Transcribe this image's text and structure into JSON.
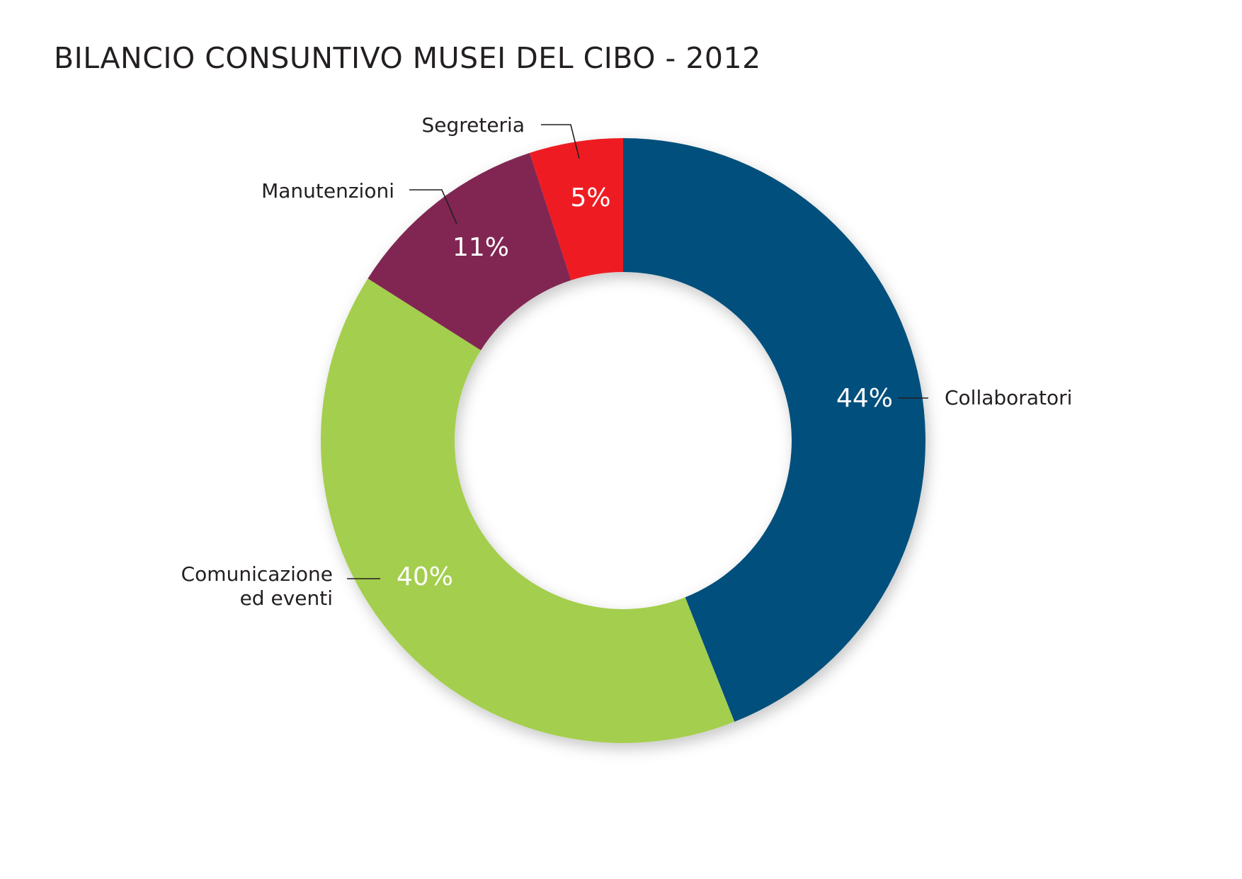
{
  "chart_data": {
    "type": "pie",
    "variant": "donut",
    "title": "BILANCIO CONSUNTIVO MUSEI DEL CIBO - 2012",
    "slices": [
      {
        "name": "Collaboratori",
        "label_lines": [
          "Collaboratori"
        ],
        "value": 44,
        "value_label": "44%",
        "color": "#05507b"
      },
      {
        "name": "Comunicazione ed eventi",
        "label_lines": [
          "Comunicazione",
          "ed eventi"
        ],
        "value": 40,
        "value_label": "40%",
        "color": "#a4ce4e"
      },
      {
        "name": "Manutenzioni",
        "label_lines": [
          "Manutenzioni"
        ],
        "value": 11,
        "value_label": "11%",
        "color": "#812852"
      },
      {
        "name": "Segreteria",
        "label_lines": [
          "Segreteria"
        ],
        "value": 5,
        "value_label": "5%",
        "color": "#ee1c24"
      }
    ],
    "start_angle": "12 o'clock",
    "direction": "clockwise",
    "legend": "none"
  }
}
